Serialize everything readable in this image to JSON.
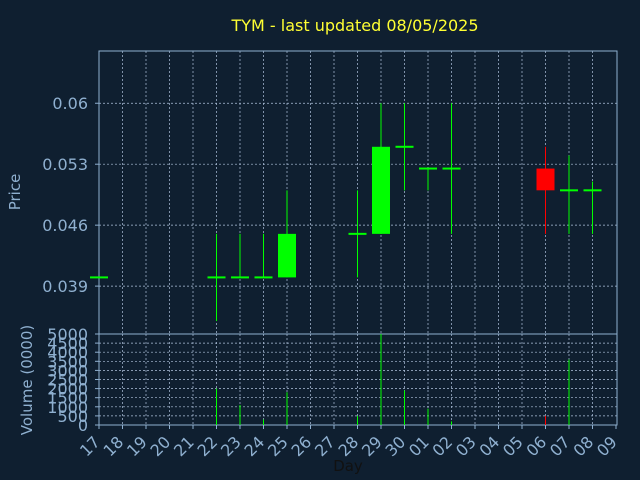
{
  "chart_data": {
    "type": "candlestick",
    "title": "TYM - last updated 08/05/2025",
    "price_panel": {
      "ylabel": "Price",
      "yticks": [
        "0.039",
        "0.046",
        "0.053",
        "0.06"
      ],
      "ylim": [
        0.0335,
        0.066
      ]
    },
    "volume_panel": {
      "ylabel": "Volume (0000)",
      "yticks": [
        "0",
        "500",
        "1000",
        "1500",
        "2000",
        "2500",
        "3000",
        "3500",
        "4000",
        "4500",
        "5000"
      ],
      "ylim": [
        0,
        5000
      ]
    },
    "xlabel": "Day",
    "x_ticks": [
      "17",
      "18",
      "19",
      "20",
      "21",
      "22",
      "23",
      "24",
      "25",
      "26",
      "27",
      "28",
      "29",
      "30",
      "01",
      "02",
      "03",
      "04",
      "05",
      "06",
      "07",
      "08",
      "09"
    ],
    "candles": [
      {
        "day": "17",
        "open": 0.04,
        "high": 0.04,
        "low": 0.04,
        "close": 0.04,
        "volume": 0
      },
      {
        "day": "22",
        "open": 0.04,
        "high": 0.045,
        "low": 0.035,
        "close": 0.04,
        "volume": 2000
      },
      {
        "day": "23",
        "open": 0.04,
        "high": 0.045,
        "low": 0.04,
        "close": 0.04,
        "volume": 1100
      },
      {
        "day": "24",
        "open": 0.04,
        "high": 0.045,
        "low": 0.04,
        "close": 0.04,
        "volume": 300
      },
      {
        "day": "25",
        "open": 0.04,
        "high": 0.05,
        "low": 0.04,
        "close": 0.045,
        "volume": 1800
      },
      {
        "day": "28",
        "open": 0.045,
        "high": 0.05,
        "low": 0.04,
        "close": 0.045,
        "volume": 500
      },
      {
        "day": "29",
        "open": 0.045,
        "high": 0.06,
        "low": 0.045,
        "close": 0.055,
        "volume": 5000
      },
      {
        "day": "30",
        "open": 0.055,
        "high": 0.06,
        "low": 0.05,
        "close": 0.055,
        "volume": 1900
      },
      {
        "day": "01",
        "open": 0.0525,
        "high": 0.0525,
        "low": 0.05,
        "close": 0.0525,
        "volume": 900
      },
      {
        "day": "02",
        "open": 0.0525,
        "high": 0.06,
        "low": 0.045,
        "close": 0.0525,
        "volume": 200
      },
      {
        "day": "06",
        "open": 0.0525,
        "high": 0.055,
        "low": 0.045,
        "close": 0.05,
        "volume": 500
      },
      {
        "day": "07",
        "open": 0.05,
        "high": 0.054,
        "low": 0.045,
        "close": 0.05,
        "volume": 3600
      },
      {
        "day": "08",
        "open": 0.05,
        "high": 0.051,
        "low": 0.045,
        "close": 0.05,
        "volume": 0
      }
    ],
    "colors": {
      "background": "#0f1f30",
      "up": "#00ff00",
      "down": "#ff0000",
      "grid": "#b0c4de",
      "frame": "#8fb0d0",
      "text": "#8fb0d0",
      "title": "#ffff33"
    },
    "grid": true
  }
}
